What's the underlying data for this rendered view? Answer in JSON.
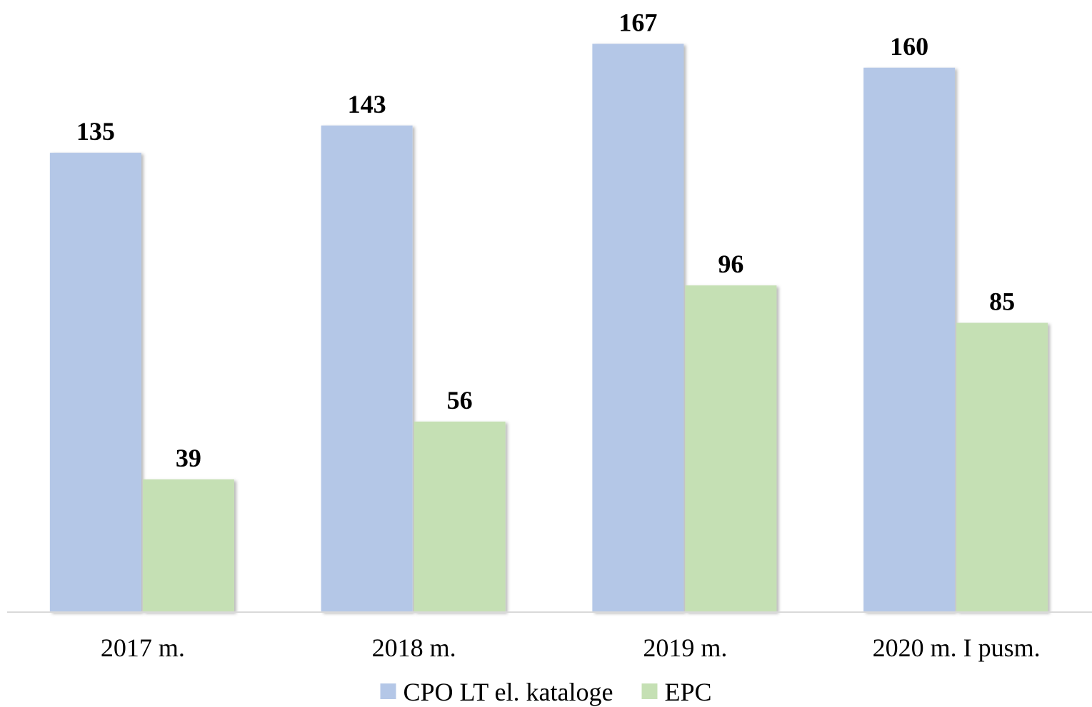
{
  "chart_data": {
    "type": "bar",
    "categories": [
      "2017 m.",
      "2018 m.",
      "2019 m.",
      "2020 m. I pusm."
    ],
    "series": [
      {
        "name": "CPO LT el. kataloge",
        "values": [
          135,
          143,
          167,
          160
        ],
        "color": "#b4c7e7"
      },
      {
        "name": "EPC",
        "values": [
          39,
          56,
          96,
          85
        ],
        "color": "#c5e0b4"
      }
    ],
    "title": "",
    "xlabel": "",
    "ylabel": "",
    "ylim": [
      0,
      180
    ],
    "grid": false,
    "data_labels": true,
    "legend_position": "bottom"
  }
}
